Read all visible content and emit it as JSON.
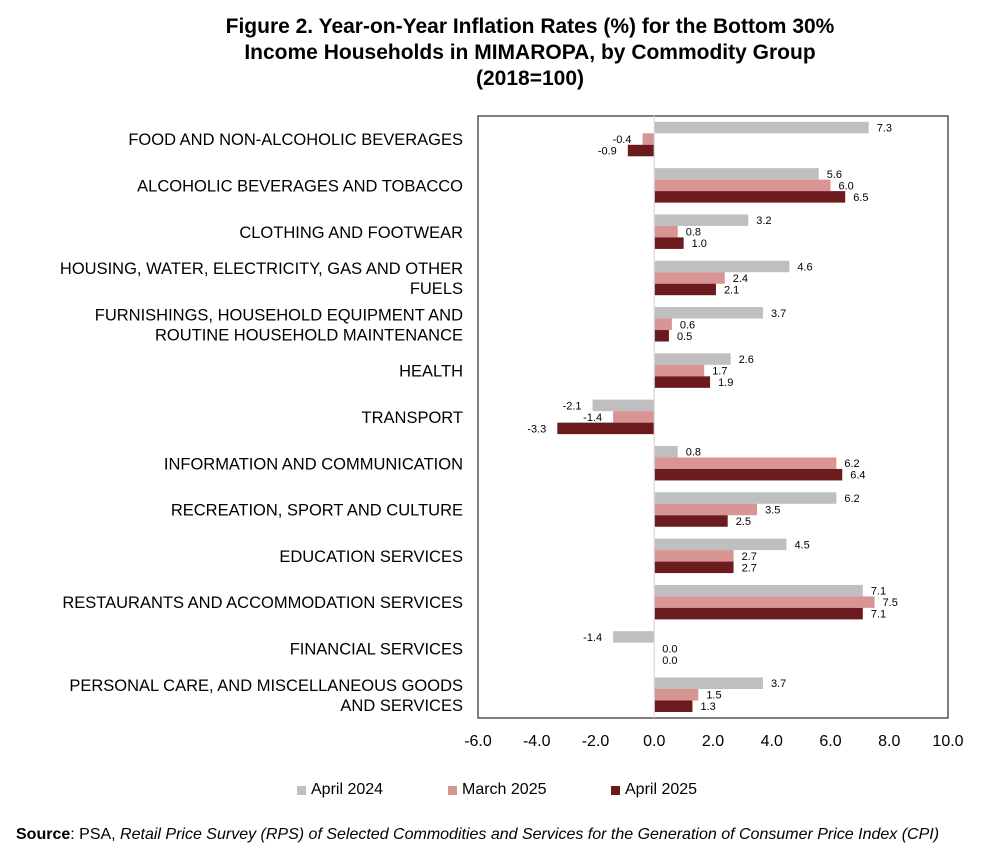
{
  "title": {
    "line1": "Figure 2. Year-on-Year Inflation Rates (%) for the Bottom 30%",
    "line2": "Income Households in MIMAROPA, by Commodity Group",
    "line3": "(2018=100)"
  },
  "source": {
    "label": "Source",
    "prefix": ": PSA, ",
    "text": "Retail Price Survey (RPS) of Selected Commodities and Services for the Generation of Consumer Price Index (CPI)"
  },
  "colors": {
    "April 2024": "#bfbfbf",
    "March 2025": "#d99594",
    "April 2025": "#6b1a1e"
  },
  "chart_data": {
    "type": "bar",
    "orientation": "horizontal",
    "title": "Figure 2. Year-on-Year Inflation Rates (%) for the Bottom 30% Income Households in MIMAROPA, by Commodity Group (2018=100)",
    "xlim": [
      -6.0,
      10.0
    ],
    "xticks": [
      "-6.0",
      "-4.0",
      "-2.0",
      "0.0",
      "2.0",
      "4.0",
      "6.0",
      "8.0",
      "10.0"
    ],
    "legend_position": "bottom",
    "grid": false,
    "categories": [
      [
        "FOOD AND NON-ALCOHOLIC BEVERAGES"
      ],
      [
        "ALCOHOLIC BEVERAGES  AND TOBACCO"
      ],
      [
        "CLOTHING AND FOOTWEAR"
      ],
      [
        "HOUSING, WATER, ELECTRICITY, GAS AND OTHER",
        "FUELS"
      ],
      [
        "FURNISHINGS, HOUSEHOLD EQUIPMENT AND",
        "ROUTINE HOUSEHOLD MAINTENANCE"
      ],
      [
        "HEALTH"
      ],
      [
        "TRANSPORT"
      ],
      [
        "INFORMATION AND COMMUNICATION"
      ],
      [
        "RECREATION, SPORT AND CULTURE"
      ],
      [
        "EDUCATION SERVICES"
      ],
      [
        "RESTAURANTS AND ACCOMMODATION SERVICES"
      ],
      [
        "FINANCIAL SERVICES"
      ],
      [
        "PERSONAL CARE, AND MISCELLANEOUS GOODS",
        "AND SERVICES"
      ]
    ],
    "series": [
      {
        "name": "April 2024",
        "values": [
          7.3,
          5.6,
          3.2,
          4.6,
          3.7,
          2.6,
          -2.1,
          0.8,
          6.2,
          4.5,
          7.1,
          -1.4,
          3.7
        ]
      },
      {
        "name": "March 2025",
        "values": [
          -0.4,
          6.0,
          0.8,
          2.4,
          0.6,
          1.7,
          -1.4,
          6.2,
          3.5,
          2.7,
          7.5,
          0.0,
          1.5
        ]
      },
      {
        "name": "April 2025",
        "values": [
          -0.9,
          6.5,
          1.0,
          2.1,
          0.5,
          1.9,
          -3.3,
          6.4,
          2.5,
          2.7,
          7.1,
          0.0,
          1.3
        ]
      }
    ]
  }
}
